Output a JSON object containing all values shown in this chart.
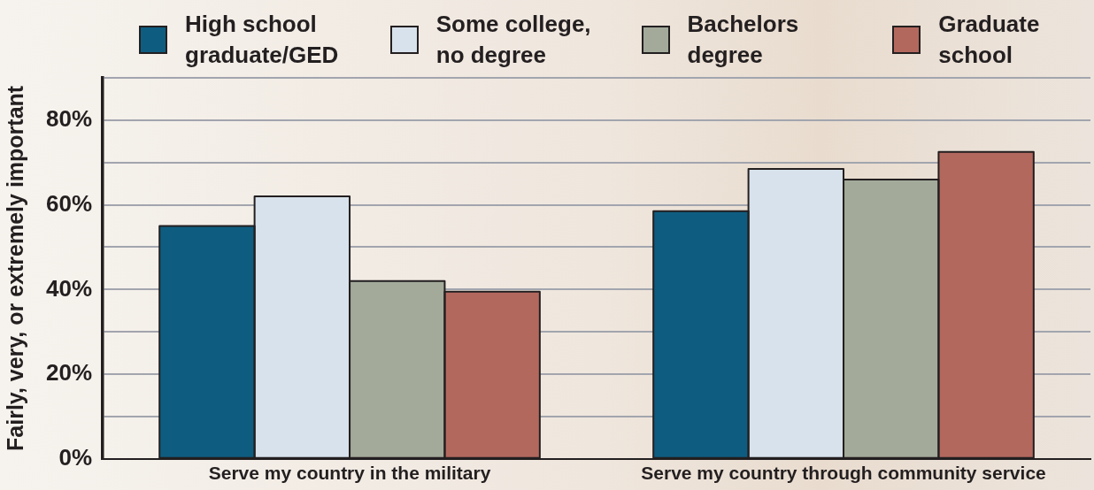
{
  "chart_data": {
    "type": "bar",
    "ylabel": "Fairly, very, or extremely important",
    "categories": [
      "Serve my country in the military",
      "Serve my country through community service"
    ],
    "series": [
      {
        "name": "High school graduate/GED",
        "color": "#0e5d80",
        "values": [
          55,
          58.5
        ]
      },
      {
        "name": "Some college, no degree",
        "color": "#d8e2ec",
        "values": [
          62,
          68.5
        ]
      },
      {
        "name": "Bachelors degree",
        "color": "#a3aa9a",
        "values": [
          42,
          66
        ]
      },
      {
        "name": "Graduate school",
        "color": "#b3685e",
        "values": [
          39.5,
          72.5
        ]
      }
    ],
    "ylim": [
      0,
      90
    ],
    "yticks": [
      {
        "value": 0,
        "label": "0%"
      },
      {
        "value": 10,
        "label": null
      },
      {
        "value": 20,
        "label": "20%"
      },
      {
        "value": 30,
        "label": null
      },
      {
        "value": 40,
        "label": "40%"
      },
      {
        "value": 50,
        "label": null
      },
      {
        "value": 60,
        "label": "60%"
      },
      {
        "value": 70,
        "label": null
      },
      {
        "value": 80,
        "label": "80%"
      },
      {
        "value": 90,
        "label": null
      }
    ],
    "grid": "y",
    "legend": "top"
  }
}
